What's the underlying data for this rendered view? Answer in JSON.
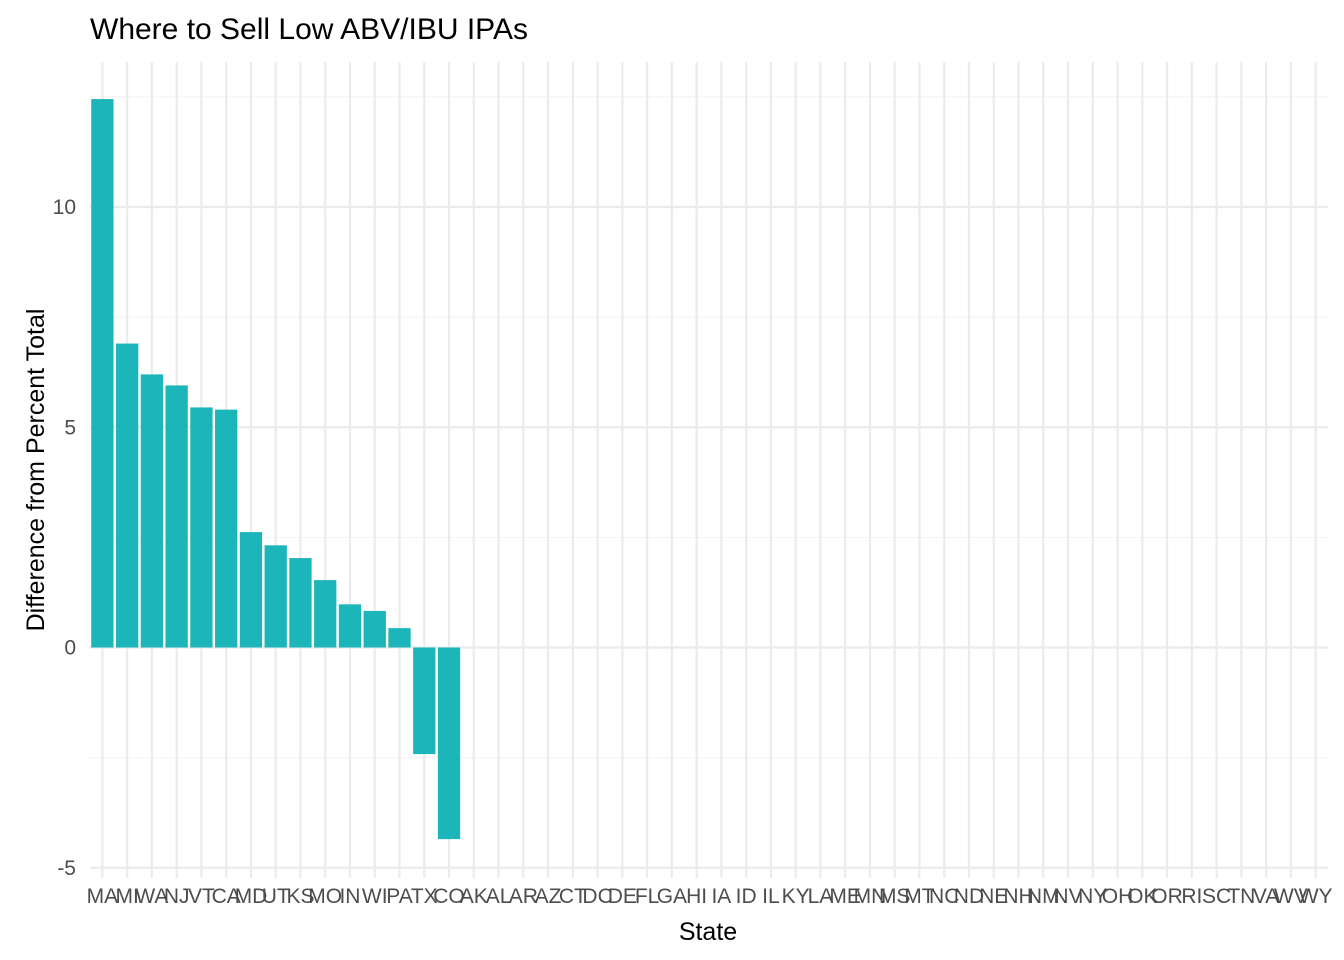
{
  "chart_data": {
    "type": "bar",
    "title": "Where to Sell Low ABV/IBU IPAs",
    "xlabel": "State",
    "ylabel": "Difference from Percent Total",
    "categories": [
      "MA",
      "MI",
      "WA",
      "NJ",
      "VT",
      "CA",
      "MD",
      "UT",
      "KS",
      "MO",
      "IN",
      "WI",
      "PA",
      "TX",
      "CO",
      "AK",
      "AL",
      "AR",
      "AZ",
      "CT",
      "DC",
      "DE",
      "FL",
      "GA",
      "HI",
      "IA",
      "ID",
      "IL",
      "KY",
      "LA",
      "ME",
      "MN",
      "MS",
      "MT",
      "NC",
      "ND",
      "NE",
      "NH",
      "NM",
      "NV",
      "NY",
      "OH",
      "OK",
      "OR",
      "RI",
      "SC",
      "TN",
      "VA",
      "WV",
      "WY"
    ],
    "values": [
      12.45,
      6.9,
      6.2,
      5.95,
      5.45,
      5.4,
      2.62,
      2.32,
      2.03,
      1.53,
      0.98,
      0.83,
      0.44,
      -2.42,
      -4.35,
      0,
      0,
      0,
      0,
      0,
      0,
      0,
      0,
      0,
      0,
      0,
      0,
      0,
      0,
      0,
      0,
      0,
      0,
      0,
      0,
      0,
      0,
      0,
      0,
      0,
      0,
      0,
      0,
      0,
      0,
      0,
      0,
      0,
      0,
      0
    ],
    "y_ticks": [
      -5,
      0,
      5,
      10
    ],
    "ylim": [
      -5,
      12.5
    ],
    "grid": true,
    "bar_color": "#1bb5ba"
  }
}
